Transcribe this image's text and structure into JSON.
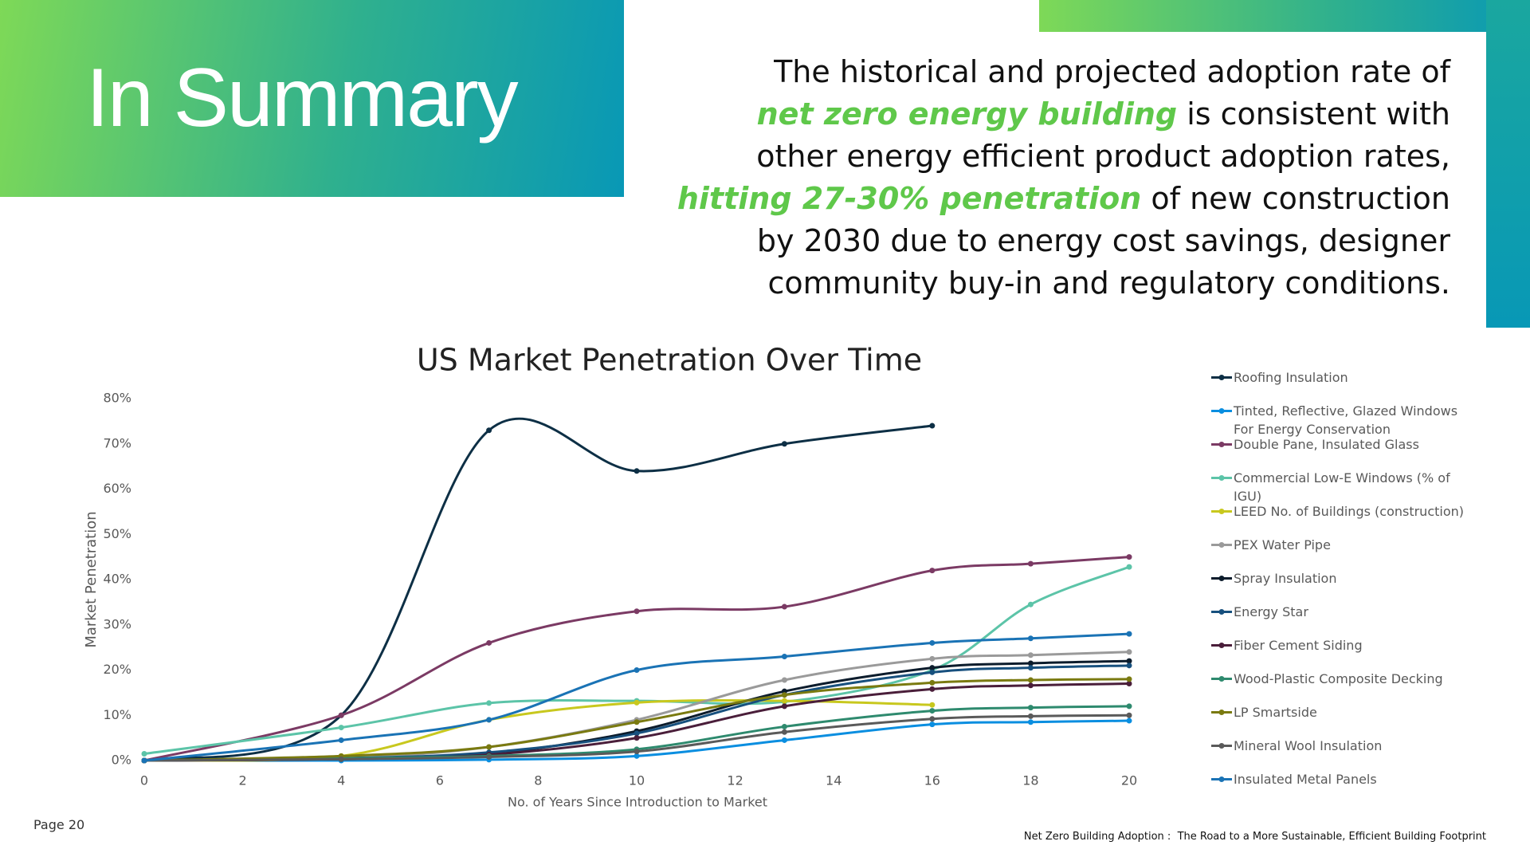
{
  "header": {
    "title": "In Summary"
  },
  "summary": {
    "lines": [
      [
        {
          "text": "The historical and projected adoption rate of",
          "highlight": false
        }
      ],
      [
        {
          "text": "net zero energy building",
          "highlight": true
        },
        {
          "text": " is consistent with",
          "highlight": false
        }
      ],
      [
        {
          "text": "other energy efficient product adoption rates,",
          "highlight": false
        }
      ],
      [
        {
          "text": "hitting 27-30% penetration",
          "highlight": true
        },
        {
          "text": " of new construction",
          "highlight": false
        }
      ],
      [
        {
          "text": "by 2030 due to energy cost savings, designer",
          "highlight": false
        }
      ],
      [
        {
          "text": "community buy-in and regulatory conditions.",
          "highlight": false
        }
      ]
    ]
  },
  "chart_data": {
    "type": "line",
    "title": "US Market Penetration Over Time",
    "x_label": "No. of Years Since Introduction to Market",
    "y_label": "Market Penetration",
    "xlim": [
      0,
      20
    ],
    "xticks": [
      0,
      2,
      4,
      6,
      8,
      10,
      12,
      14,
      16,
      18,
      20
    ],
    "ylim": [
      0,
      80
    ],
    "yticks": [
      {
        "value": 0,
        "label": "0%"
      },
      {
        "value": 10,
        "label": "10%"
      },
      {
        "value": 20,
        "label": "20%"
      },
      {
        "value": 30,
        "label": "30%"
      },
      {
        "value": 40,
        "label": "40%"
      },
      {
        "value": 50,
        "label": "50%"
      },
      {
        "value": 60,
        "label": "60%"
      },
      {
        "value": 70,
        "label": "70%"
      },
      {
        "value": 80,
        "label": "80%"
      }
    ],
    "grid": false,
    "smooth": true,
    "series": [
      {
        "name": "Roofing Insulation",
        "color": "#0d2f45",
        "x": [
          0,
          4,
          7,
          10,
          13,
          16
        ],
        "values": [
          0,
          10,
          73,
          64,
          70,
          74
        ]
      },
      {
        "name": "Tinted, Reflective, Glazed Windows For Energy Conservation",
        "color": "#0a8ee0",
        "x": [
          0,
          4,
          7,
          10,
          13,
          16,
          18,
          20
        ],
        "values": [
          0,
          0,
          0.2,
          1,
          4.5,
          8,
          8.5,
          8.8
        ]
      },
      {
        "name": "Double Pane, Insulated Glass",
        "color": "#7b3a64",
        "x": [
          0,
          4,
          7,
          10,
          13,
          16,
          18,
          20
        ],
        "values": [
          0,
          10,
          26,
          33,
          34,
          42,
          43.5,
          45
        ]
      },
      {
        "name": "Commercial Low-E Windows (% of IGU)",
        "color": "#5cc4a8",
        "x": [
          0,
          4,
          7,
          10,
          13,
          16,
          18,
          20
        ],
        "values": [
          1.5,
          7.3,
          12.7,
          13.2,
          13,
          20,
          34.5,
          42.8
        ]
      },
      {
        "name": "LEED No. of Buildings (construction)",
        "color": "#c8c81e",
        "x": [
          0,
          4,
          7,
          10,
          13,
          16
        ],
        "values": [
          0,
          1,
          9,
          12.8,
          13.2,
          12.3
        ]
      },
      {
        "name": "PEX Water Pipe",
        "color": "#9a9a9a",
        "x": [
          0,
          4,
          7,
          10,
          13,
          16,
          18,
          20
        ],
        "values": [
          0,
          0.5,
          3,
          9,
          17.8,
          22.5,
          23.3,
          24
        ]
      },
      {
        "name": "Spray Insulation",
        "color": "#0c1c2c",
        "x": [
          0,
          4,
          7,
          10,
          13,
          16,
          18,
          20
        ],
        "values": [
          0,
          0.5,
          1.5,
          6.5,
          15.3,
          20.5,
          21.5,
          22
        ]
      },
      {
        "name": "Energy Star",
        "color": "#17507e",
        "x": [
          0,
          4,
          7,
          10,
          13,
          16,
          18,
          20
        ],
        "values": [
          0,
          0.5,
          1.8,
          6,
          14.5,
          19.5,
          20.5,
          21
        ]
      },
      {
        "name": "Fiber Cement Siding",
        "color": "#4a1e3a",
        "x": [
          0,
          4,
          7,
          10,
          13,
          16,
          18,
          20
        ],
        "values": [
          0,
          0.3,
          1.3,
          5,
          12,
          15.8,
          16.6,
          17
        ]
      },
      {
        "name": "Wood-Plastic Composite Decking",
        "color": "#2e8a6e",
        "x": [
          0,
          4,
          7,
          10,
          13,
          16,
          18,
          20
        ],
        "values": [
          0,
          0.5,
          1,
          2.5,
          7.5,
          11,
          11.7,
          12
        ]
      },
      {
        "name": "LP Smartside",
        "color": "#7a7a10",
        "x": [
          0,
          4,
          7,
          10,
          13,
          16,
          18,
          20
        ],
        "values": [
          0,
          1,
          3,
          8.5,
          14.5,
          17.2,
          17.8,
          18
        ]
      },
      {
        "name": "Mineral Wool Insulation",
        "color": "#5a5a5a",
        "x": [
          0,
          4,
          7,
          10,
          13,
          16,
          18,
          20
        ],
        "values": [
          0,
          0.3,
          0.8,
          2,
          6.3,
          9.2,
          9.8,
          10
        ]
      },
      {
        "name": "Insulated Metal Panels",
        "color": "#1a73b5",
        "x": [
          0,
          4,
          7,
          10,
          13,
          16,
          18,
          20
        ],
        "values": [
          0,
          4.5,
          9,
          20,
          23,
          26,
          27,
          28
        ]
      }
    ]
  },
  "footer": {
    "page": "Page 20",
    "document": "Net Zero Building Adoption :  The Road to a More Sustainable, Efficient Building Footprint"
  }
}
